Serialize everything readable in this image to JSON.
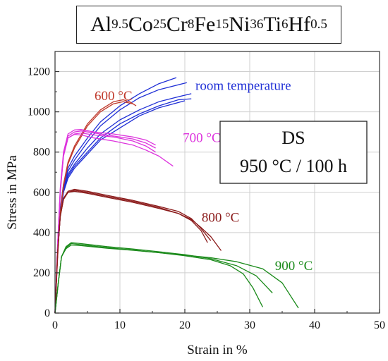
{
  "chart_data": {
    "type": "line",
    "title_parts": [
      {
        "el": "Al",
        "sub": "9.5"
      },
      {
        "el": "Co",
        "sub": "25"
      },
      {
        "el": "Cr",
        "sub": "8"
      },
      {
        "el": "Fe",
        "sub": "15"
      },
      {
        "el": "Ni",
        "sub": "36"
      },
      {
        "el": "Ti",
        "sub": "6"
      },
      {
        "el": "Hf",
        "sub": "0.5"
      }
    ],
    "xlabel": "Strain in %",
    "ylabel": "Stress in MPa",
    "xlim": [
      0,
      50
    ],
    "ylim": [
      0,
      1300
    ],
    "x_ticks": [
      0,
      10,
      20,
      30,
      40,
      50
    ],
    "y_ticks": [
      0,
      200,
      400,
      600,
      800,
      1000,
      1200
    ],
    "grid": true,
    "annotation": {
      "line1": "DS",
      "line2": "950 °C / 100 h"
    },
    "groups": [
      {
        "label": "room temperature",
        "color": "#1f2fd6",
        "label_at": [
          29,
          1130
        ],
        "curves": [
          [
            [
              0,
              0
            ],
            [
              0.4,
              300
            ],
            [
              0.8,
              520
            ],
            [
              1.3,
              640
            ],
            [
              2,
              720
            ],
            [
              3,
              780
            ],
            [
              5,
              870
            ],
            [
              7,
              950
            ],
            [
              10,
              1030
            ],
            [
              13,
              1090
            ],
            [
              16,
              1140
            ],
            [
              18.7,
              1170
            ]
          ],
          [
            [
              0,
              0
            ],
            [
              0.4,
              300
            ],
            [
              0.8,
              510
            ],
            [
              1.3,
              630
            ],
            [
              2,
              705
            ],
            [
              3,
              760
            ],
            [
              5,
              850
            ],
            [
              7,
              930
            ],
            [
              10,
              1010
            ],
            [
              13,
              1070
            ],
            [
              16,
              1110
            ],
            [
              20.3,
              1145
            ]
          ],
          [
            [
              0,
              0
            ],
            [
              0.4,
              300
            ],
            [
              0.8,
              500
            ],
            [
              1.3,
              620
            ],
            [
              2,
              690
            ],
            [
              3,
              740
            ],
            [
              5,
              820
            ],
            [
              7,
              890
            ],
            [
              10,
              960
            ],
            [
              13,
              1010
            ],
            [
              16,
              1050
            ],
            [
              19,
              1075
            ],
            [
              21,
              1090
            ]
          ],
          [
            [
              0,
              0
            ],
            [
              0.4,
              300
            ],
            [
              0.8,
              490
            ],
            [
              1.3,
              610
            ],
            [
              2,
              680
            ],
            [
              3,
              730
            ],
            [
              5,
              800
            ],
            [
              7,
              870
            ],
            [
              10,
              940
            ],
            [
              13,
              990
            ],
            [
              16,
              1030
            ],
            [
              19,
              1060
            ],
            [
              21,
              1065
            ]
          ],
          [
            [
              0,
              0
            ],
            [
              0.4,
              300
            ],
            [
              0.8,
              480
            ],
            [
              1.3,
              600
            ],
            [
              2,
              670
            ],
            [
              3,
              720
            ],
            [
              5,
              790
            ],
            [
              7,
              860
            ],
            [
              10,
              920
            ],
            [
              13,
              980
            ],
            [
              16,
              1020
            ],
            [
              20,
              1055
            ]
          ]
        ]
      },
      {
        "label": "600 °C",
        "color": "#c0392b",
        "label_at": [
          9,
          1080
        ],
        "curves": [
          [
            [
              0,
              0
            ],
            [
              0.4,
              280
            ],
            [
              0.8,
              500
            ],
            [
              1.3,
              640
            ],
            [
              2,
              750
            ],
            [
              3,
              830
            ],
            [
              5,
              940
            ],
            [
              7,
              1010
            ],
            [
              9,
              1050
            ],
            [
              10.5,
              1060
            ],
            [
              11.5,
              1050
            ],
            [
              12.5,
              1030
            ]
          ],
          [
            [
              0,
              0
            ],
            [
              0.4,
              280
            ],
            [
              0.8,
              490
            ],
            [
              1.3,
              630
            ],
            [
              2,
              740
            ],
            [
              3,
              820
            ],
            [
              5,
              930
            ],
            [
              7,
              1000
            ],
            [
              9,
              1040
            ],
            [
              10.5,
              1050
            ],
            [
              12,
              1040
            ]
          ]
        ]
      },
      {
        "label": "700 °C",
        "color": "#dd33dd",
        "label_at": [
          22.6,
          870
        ],
        "curves": [
          [
            [
              0,
              0
            ],
            [
              0.4,
              340
            ],
            [
              0.8,
              620
            ],
            [
              1.3,
              800
            ],
            [
              2,
              890
            ],
            [
              3,
              910
            ],
            [
              4,
              912
            ],
            [
              6,
              900
            ],
            [
              9,
              890
            ],
            [
              12,
              875
            ],
            [
              14,
              860
            ],
            [
              15.5,
              835
            ]
          ],
          [
            [
              0,
              0
            ],
            [
              0.4,
              340
            ],
            [
              0.8,
              610
            ],
            [
              1.3,
              790
            ],
            [
              2,
              880
            ],
            [
              3,
              900
            ],
            [
              4,
              905
            ],
            [
              6,
              895
            ],
            [
              9,
              880
            ],
            [
              12,
              865
            ],
            [
              14,
              845
            ],
            [
              15.5,
              820
            ]
          ],
          [
            [
              0,
              0
            ],
            [
              0.4,
              340
            ],
            [
              0.8,
              600
            ],
            [
              1.3,
              780
            ],
            [
              2,
              870
            ],
            [
              3,
              890
            ],
            [
              4,
              895
            ],
            [
              6,
              885
            ],
            [
              9,
              875
            ],
            [
              12,
              855
            ],
            [
              14,
              830
            ],
            [
              15.5,
              800
            ]
          ],
          [
            [
              0,
              0
            ],
            [
              0.4,
              340
            ],
            [
              0.8,
              600
            ],
            [
              1.3,
              780
            ],
            [
              2,
              870
            ],
            [
              3,
              888
            ],
            [
              4,
              885
            ],
            [
              6,
              870
            ],
            [
              9,
              855
            ],
            [
              12,
              835
            ],
            [
              14,
              810
            ],
            [
              16,
              780
            ],
            [
              18.2,
              730
            ]
          ]
        ]
      },
      {
        "label": "800 °C",
        "color": "#8b1a1a",
        "label_at": [
          25.5,
          475
        ],
        "curves": [
          [
            [
              0,
              0
            ],
            [
              0.4,
              300
            ],
            [
              0.8,
              480
            ],
            [
              1.3,
              570
            ],
            [
              2,
              605
            ],
            [
              3,
              615
            ],
            [
              5,
              605
            ],
            [
              8,
              585
            ],
            [
              12,
              560
            ],
            [
              16,
              530
            ],
            [
              19,
              505
            ],
            [
              21,
              470
            ],
            [
              22.5,
              420
            ],
            [
              24,
              360
            ]
          ],
          [
            [
              0,
              0
            ],
            [
              0.4,
              300
            ],
            [
              0.8,
              480
            ],
            [
              1.3,
              565
            ],
            [
              2,
              600
            ],
            [
              3,
              610
            ],
            [
              5,
              600
            ],
            [
              8,
              580
            ],
            [
              12,
              555
            ],
            [
              16,
              525
            ],
            [
              19,
              495
            ],
            [
              21,
              460
            ],
            [
              22.5,
              410
            ],
            [
              23.5,
              350
            ]
          ],
          [
            [
              0,
              0
            ],
            [
              0.4,
              300
            ],
            [
              0.8,
              480
            ],
            [
              1.3,
              565
            ],
            [
              2,
              600
            ],
            [
              3,
              605
            ],
            [
              5,
              595
            ],
            [
              8,
              575
            ],
            [
              12,
              550
            ],
            [
              16,
              520
            ],
            [
              19,
              495
            ],
            [
              21,
              465
            ],
            [
              22.5,
              425
            ],
            [
              24,
              380
            ],
            [
              25.6,
              310
            ]
          ]
        ]
      },
      {
        "label": "900 °C",
        "color": "#1a8a1a",
        "label_at": [
          36.8,
          235
        ],
        "curves": [
          [
            [
              0,
              0
            ],
            [
              0.5,
              150
            ],
            [
              1,
              280
            ],
            [
              1.7,
              330
            ],
            [
              2.5,
              350
            ],
            [
              4,
              345
            ],
            [
              8,
              330
            ],
            [
              12,
              318
            ],
            [
              16,
              305
            ],
            [
              20,
              290
            ],
            [
              24,
              270
            ],
            [
              28,
              235
            ],
            [
              31,
              185
            ],
            [
              33.5,
              100
            ]
          ],
          [
            [
              0,
              0
            ],
            [
              0.5,
              150
            ],
            [
              1,
              280
            ],
            [
              1.7,
              325
            ],
            [
              2.5,
              345
            ],
            [
              4,
              340
            ],
            [
              8,
              325
            ],
            [
              12,
              313
            ],
            [
              16,
              300
            ],
            [
              20,
              285
            ],
            [
              24,
              265
            ],
            [
              27,
              235
            ],
            [
              29,
              195
            ],
            [
              30.5,
              125
            ],
            [
              32,
              30
            ]
          ],
          [
            [
              0,
              0
            ],
            [
              0.5,
              150
            ],
            [
              1,
              280
            ],
            [
              1.7,
              320
            ],
            [
              2.5,
              338
            ],
            [
              4,
              335
            ],
            [
              8,
              322
            ],
            [
              12,
              312
            ],
            [
              16,
              300
            ],
            [
              20,
              288
            ],
            [
              24,
              275
            ],
            [
              28,
              255
            ],
            [
              32,
              220
            ],
            [
              35,
              150
            ],
            [
              37.5,
              25
            ]
          ]
        ]
      }
    ]
  }
}
